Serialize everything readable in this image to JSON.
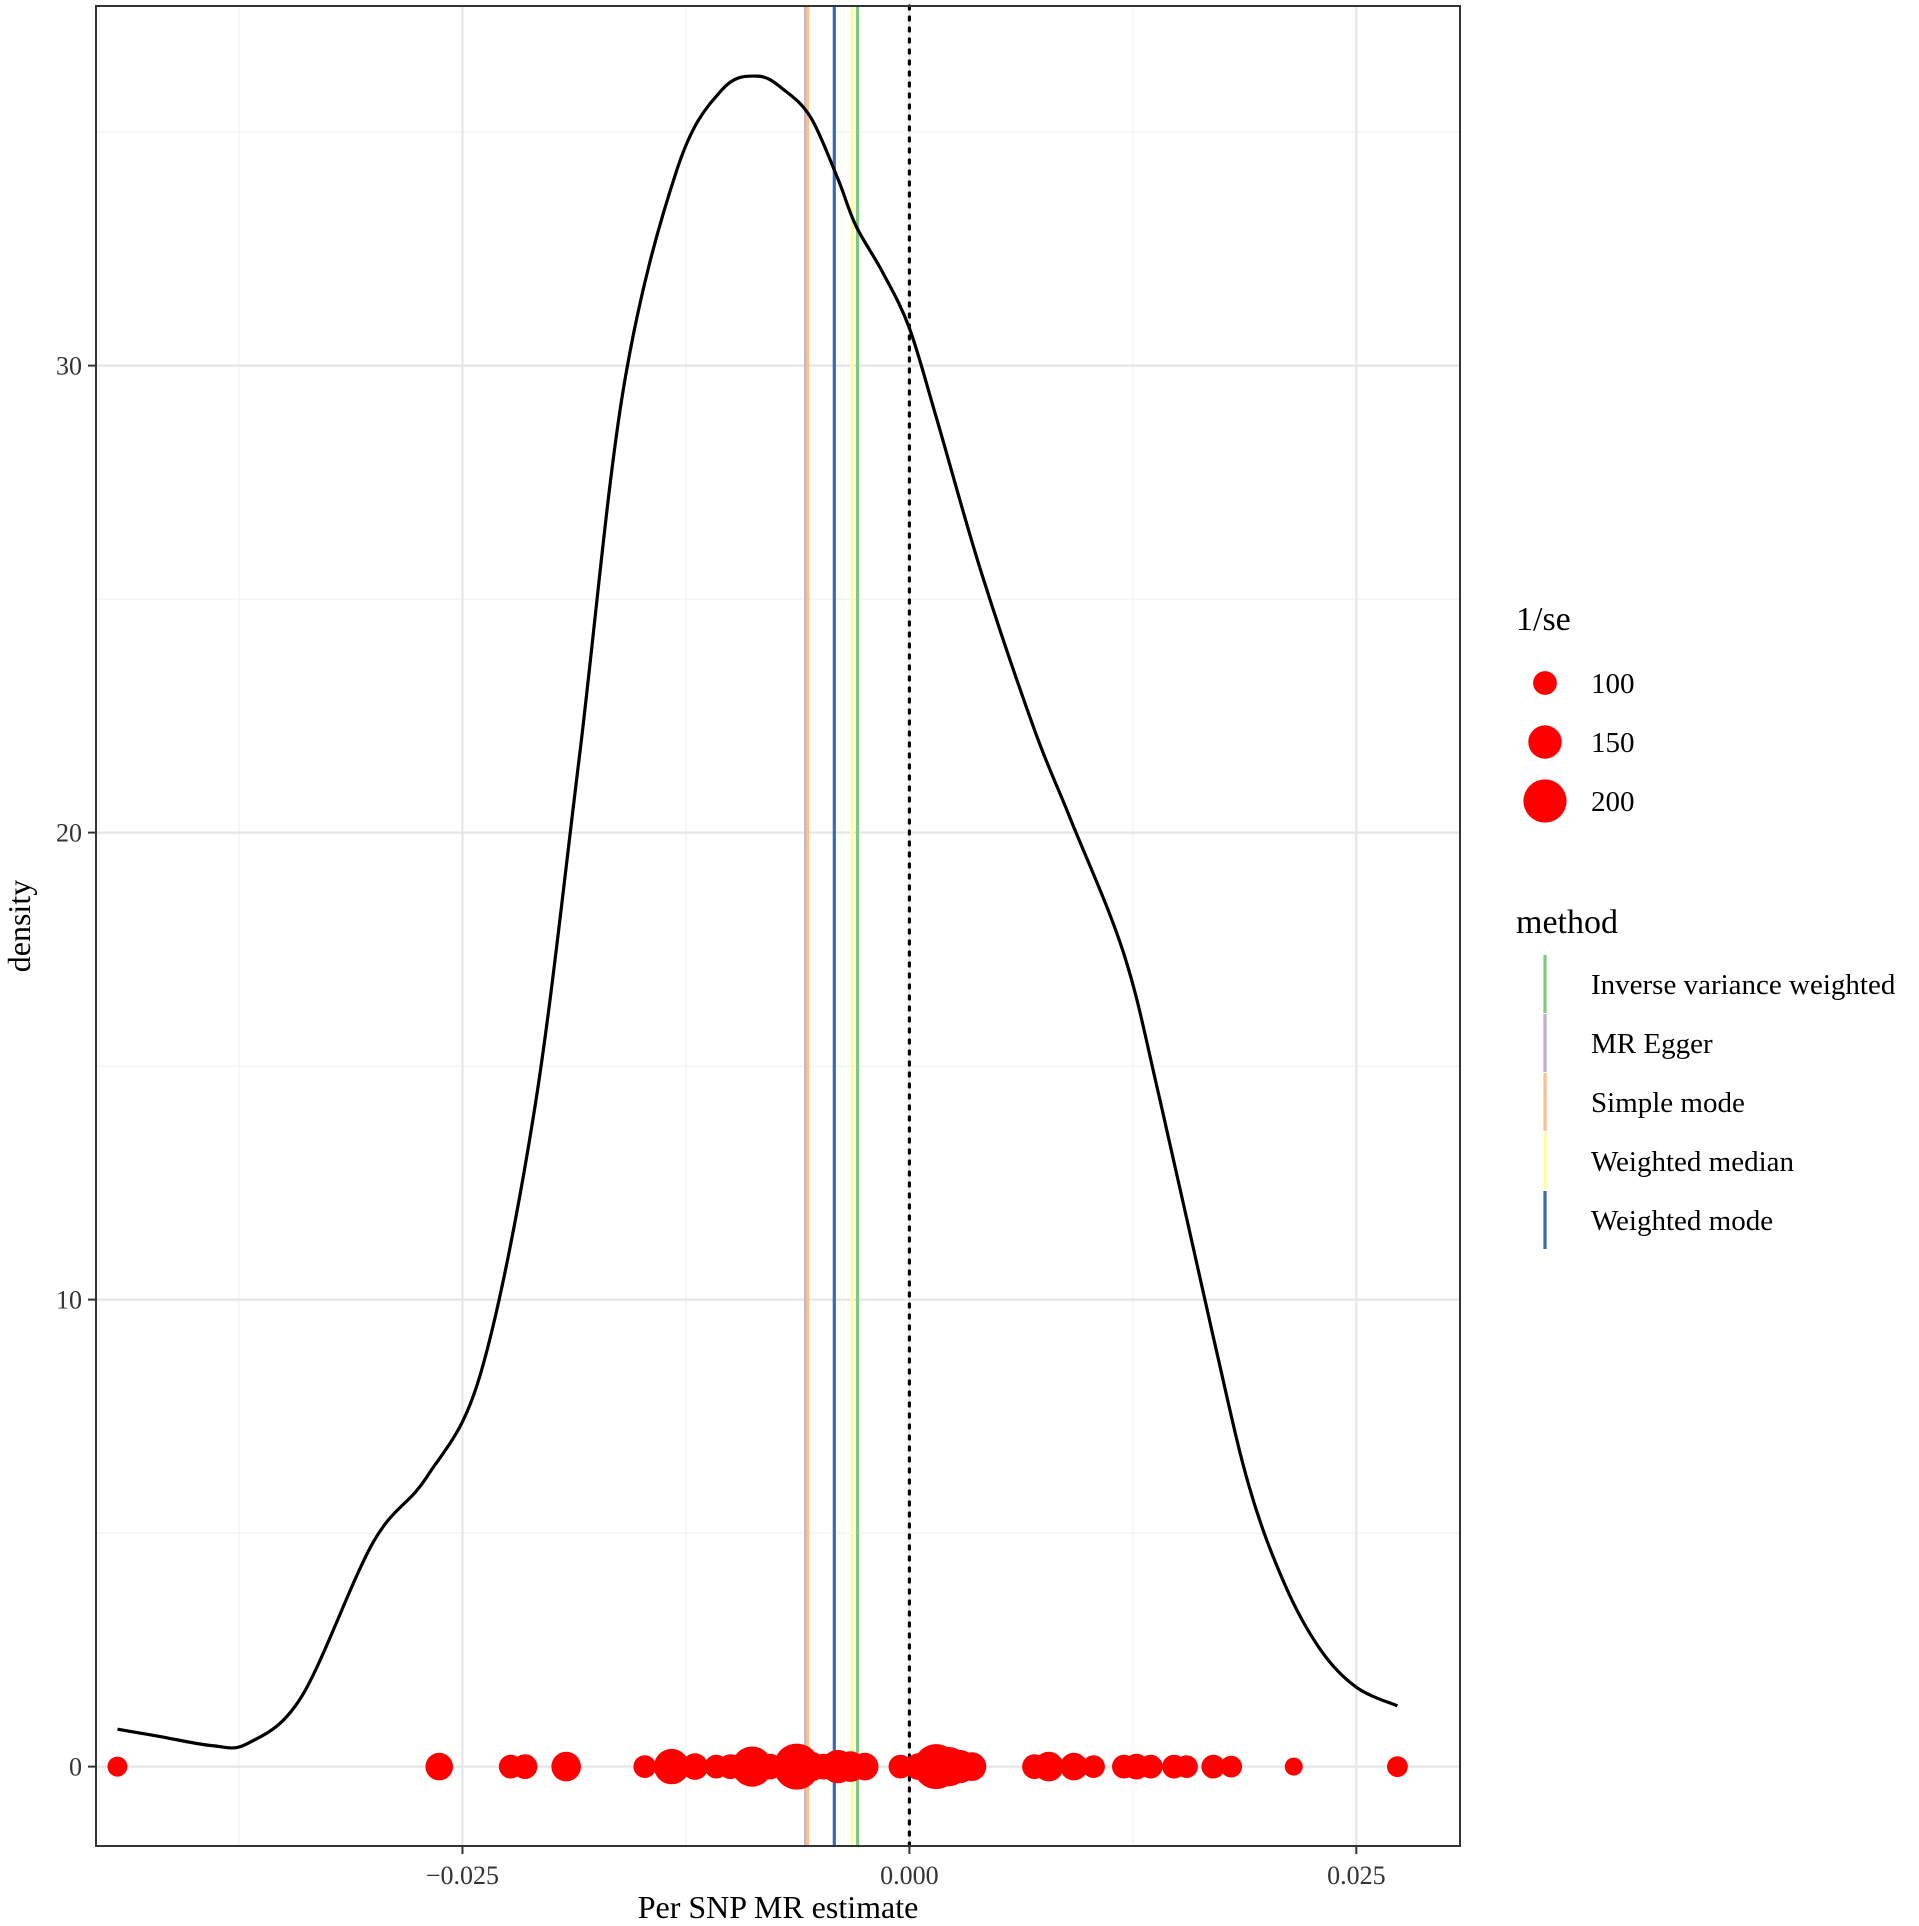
{
  "chart_data": {
    "type": "density",
    "xlabel": "Per SNP MR estimate",
    "ylabel": "density",
    "xlim": [
      -0.0455,
      0.0308
    ],
    "ylim": [
      -1.7,
      37.7
    ],
    "x_ticks": [
      -0.025,
      0.0,
      0.025
    ],
    "x_tick_labels": [
      "−0.025",
      "0.000",
      "0.025"
    ],
    "y_ticks": [
      0,
      10,
      20,
      30
    ],
    "y_tick_labels": [
      "0",
      "10",
      "20",
      "30"
    ],
    "grid": true,
    "legend_position": "right",
    "density_curve": {
      "color": "#000000",
      "x": [
        -0.0443,
        -0.042,
        -0.039,
        -0.037,
        -0.034,
        -0.03,
        -0.027,
        -0.024,
        -0.021,
        -0.0185,
        -0.016,
        -0.013,
        -0.0105,
        -0.0085,
        -0.007,
        -0.0055,
        -0.004,
        -0.003,
        -0.0015,
        0.0,
        0.0015,
        0.004,
        0.007,
        0.009,
        0.012,
        0.014,
        0.017,
        0.019,
        0.021,
        0.023,
        0.025,
        0.0273
      ],
      "y": [
        0.8,
        0.65,
        0.45,
        0.5,
        1.5,
        4.8,
        6.2,
        8.4,
        14.0,
        21.5,
        29.5,
        34.2,
        35.9,
        36.2,
        35.9,
        35.3,
        34.0,
        33.0,
        32.0,
        30.8,
        28.9,
        25.6,
        22.2,
        20.3,
        17.4,
        14.3,
        9.2,
        6.0,
        3.9,
        2.5,
        1.7,
        1.3
      ]
    },
    "reference_line": {
      "x": 0.0,
      "style": "dotted",
      "color": "#000000"
    },
    "method_lines": [
      {
        "name": "Inverse variance weighted",
        "x": -0.0029,
        "color": "#7fc97f"
      },
      {
        "name": "MR Egger",
        "x": -0.0058,
        "color": "#beaed4"
      },
      {
        "name": "Simple mode",
        "x": -0.0057,
        "color": "#fdc086"
      },
      {
        "name": "Weighted median",
        "x": -0.0032,
        "color": "#ffff99"
      },
      {
        "name": "Weighted mode",
        "x": -0.0042,
        "color": "#386cb0"
      }
    ],
    "points": {
      "color": "#ff0000",
      "y": 0,
      "x": [
        -0.0443,
        -0.0263,
        -0.0223,
        -0.0215,
        -0.0192,
        -0.0148,
        -0.0133,
        -0.012,
        -0.0108,
        -0.01,
        -0.0088,
        -0.0078,
        -0.0063,
        -0.0055,
        -0.0048,
        -0.004,
        -0.0033,
        -0.0025,
        -0.0005,
        0.0005,
        0.0015,
        0.0022,
        0.0028,
        0.0035,
        0.007,
        0.0078,
        0.0092,
        0.0103,
        0.012,
        0.0127,
        0.0135,
        0.0148,
        0.0155,
        0.017,
        0.018,
        0.0215,
        0.0273
      ],
      "inv_se": [
        80,
        120,
        100,
        105,
        130,
        95,
        160,
        115,
        100,
        105,
        185,
        110,
        215,
        130,
        110,
        150,
        135,
        120,
        100,
        115,
        210,
        180,
        150,
        125,
        105,
        130,
        120,
        95,
        100,
        110,
        100,
        100,
        95,
        100,
        90,
        70,
        85
      ]
    },
    "size_legend": {
      "title": "1/se",
      "values": [
        100,
        150,
        200
      ],
      "labels": [
        "100",
        "150",
        "200"
      ]
    },
    "method_legend": {
      "title": "method",
      "labels": [
        "Inverse variance weighted",
        "MR Egger",
        "Simple mode",
        "Weighted median",
        "Weighted mode"
      ]
    }
  }
}
